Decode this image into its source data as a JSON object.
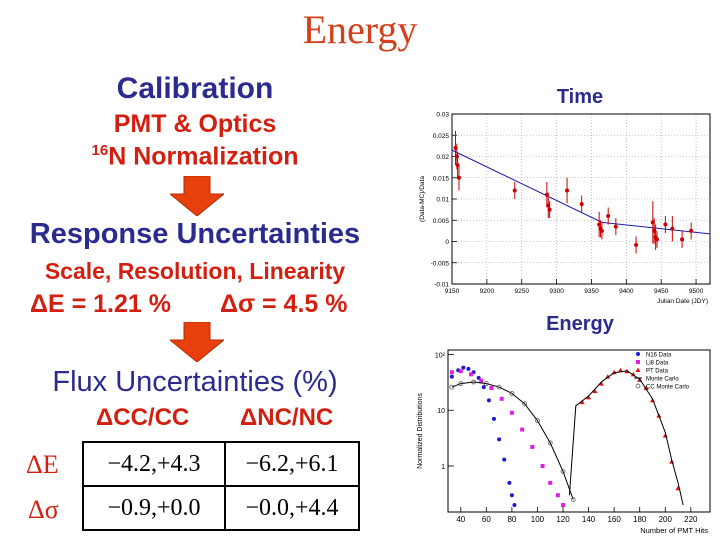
{
  "slide_title": "Energy",
  "left": {
    "calibration": "Calibration",
    "pmt_optics": "PMT & Optics",
    "n16_sup": "16",
    "n16_text": "N Normalization",
    "response_heading": "Response Uncertainties",
    "response_sub": "Scale, Resolution, Linearity",
    "delta_e": "ΔE = 1.21 %",
    "delta_sigma": "Δσ = 4.5 %",
    "flux_heading": "Flux Uncertainties (%)",
    "col_cc": "ΔCC/CC",
    "col_nc": "ΔNC/NC",
    "rows": [
      {
        "label": "ΔE",
        "cc": "−4.2,+4.3",
        "nc": "−6.2,+6.1"
      },
      {
        "label": "Δσ",
        "cc": "−0.9,+0.0",
        "nc": "−0.0,+4.4"
      }
    ]
  },
  "chart_data": [
    {
      "type": "scatter",
      "title": "Time",
      "xlabel": "Julian Date (JDY)",
      "ylabel": "(Data-MC)/Data",
      "xlim": [
        9150,
        9520
      ],
      "ylim": [
        -0.01,
        0.03
      ],
      "xticks": [
        9150,
        9200,
        9250,
        9300,
        9350,
        9400,
        9450,
        9500
      ],
      "xtick_labels": [
        "9150",
        "9200",
        "9250",
        "9300",
        "9350",
        "9400",
        "9450",
        "9500"
      ],
      "yticks": [
        -0.01,
        -0.005,
        0,
        0.005,
        0.01,
        0.015,
        0.02,
        0.025,
        0.03
      ],
      "ytick_labels": [
        "-0.01",
        "-0.005",
        "0",
        "0.005",
        "0.01",
        "0.015",
        "0.02",
        "0.025",
        "0.03"
      ],
      "points": [
        {
          "x": 9155,
          "y": 0.022,
          "err": 0.004
        },
        {
          "x": 9157,
          "y": 0.02,
          "err": 0.003
        },
        {
          "x": 9158,
          "y": 0.018,
          "err": 0.003
        },
        {
          "x": 9160,
          "y": 0.015,
          "err": 0.003
        },
        {
          "x": 9240,
          "y": 0.012,
          "err": 0.002
        },
        {
          "x": 9286,
          "y": 0.011,
          "err": 0.003
        },
        {
          "x": 9288,
          "y": 0.0085,
          "err": 0.003
        },
        {
          "x": 9290,
          "y": 0.0075,
          "err": 0.002
        },
        {
          "x": 9315,
          "y": 0.012,
          "err": 0.003
        },
        {
          "x": 9336,
          "y": 0.0088,
          "err": 0.002
        },
        {
          "x": 9361,
          "y": 0.004,
          "err": 0.003
        },
        {
          "x": 9363,
          "y": 0.003,
          "err": 0.002
        },
        {
          "x": 9365,
          "y": 0.0025,
          "err": 0.002
        },
        {
          "x": 9374,
          "y": 0.006,
          "err": 0.002
        },
        {
          "x": 9385,
          "y": 0.0035,
          "err": 0.002
        },
        {
          "x": 9414,
          "y": -0.0008,
          "err": 0.002
        },
        {
          "x": 9438,
          "y": 0.0045,
          "err": 0.005
        },
        {
          "x": 9440,
          "y": 0.0025,
          "err": 0.003
        },
        {
          "x": 9442,
          "y": 0.001,
          "err": 0.003
        },
        {
          "x": 9444,
          "y": 0.0005,
          "err": 0.002
        },
        {
          "x": 9456,
          "y": 0.004,
          "err": 0.002
        },
        {
          "x": 9466,
          "y": 0.003,
          "err": 0.003
        },
        {
          "x": 9480,
          "y": 0.0005,
          "err": 0.002
        },
        {
          "x": 9493,
          "y": 0.0025,
          "err": 0.002
        }
      ],
      "fit_line": {
        "x": [
          9150,
          9365,
          9520
        ],
        "y": [
          0.0215,
          0.0045,
          0.0018
        ]
      }
    },
    {
      "type": "line",
      "title": "Energy",
      "xlabel": "Number of PMT Hits",
      "ylabel": "Normalized Distributions",
      "log_y": true,
      "xlim": [
        30,
        235
      ],
      "ylim": [
        0.15,
        120
      ],
      "xticks": [
        40,
        60,
        80,
        100,
        120,
        140,
        160,
        180,
        200,
        220
      ],
      "xtick_labels": [
        "40",
        "60",
        "80",
        "100",
        "120",
        "140",
        "160",
        "180",
        "200",
        "220"
      ],
      "yticks": [
        1,
        10,
        100
      ],
      "ytick_labels": [
        "1",
        "10",
        "10²"
      ],
      "legend": [
        "N16 Data",
        "Li8 Data",
        "PT Data",
        "Monte Carlo",
        "CC Monte Carlo"
      ],
      "legend_position": "top-right",
      "series": [
        {
          "name": "N16 Data",
          "color": "#1a1acc",
          "x": [
            33,
            38,
            42,
            46,
            50,
            54,
            58,
            62,
            66,
            70,
            74,
            78,
            80,
            82
          ],
          "y": [
            40,
            52,
            58,
            55,
            48,
            38,
            26,
            15,
            7,
            3,
            1.3,
            0.5,
            0.3,
            0.2
          ]
        },
        {
          "name": "Li8 Data",
          "color": "#e020e0",
          "x": [
            33,
            40,
            48,
            56,
            64,
            72,
            80,
            88,
            96,
            104,
            110,
            116,
            120
          ],
          "y": [
            48,
            50,
            44,
            34,
            25,
            16,
            9,
            4.5,
            2.2,
            1,
            0.5,
            0.3,
            0.2
          ]
        },
        {
          "name": "PT Data",
          "color": "#e01010",
          "x": [
            135,
            140,
            145,
            150,
            155,
            160,
            165,
            170,
            175,
            180,
            185,
            190,
            195,
            200,
            205,
            210
          ],
          "y": [
            14,
            17,
            22,
            30,
            40,
            48,
            52,
            50,
            44,
            35,
            25,
            15,
            8,
            3.5,
            1.2,
            0.4
          ]
        },
        {
          "name": "Monte Carlo",
          "color": "#000000",
          "x": [
            125,
            130,
            140,
            150,
            160,
            170,
            180,
            190,
            200,
            205,
            210,
            214
          ],
          "y": [
            0.3,
            12,
            18,
            32,
            47,
            51,
            36,
            16,
            4,
            1.3,
            0.5,
            0.2
          ]
        },
        {
          "name": "CC Monte Carlo",
          "color": "#555555",
          "x": [
            33,
            40,
            50,
            60,
            70,
            80,
            90,
            100,
            110,
            120,
            128
          ],
          "y": [
            26,
            30,
            32,
            30,
            26,
            20,
            13,
            6.5,
            2.6,
            0.8,
            0.25
          ]
        }
      ]
    }
  ]
}
